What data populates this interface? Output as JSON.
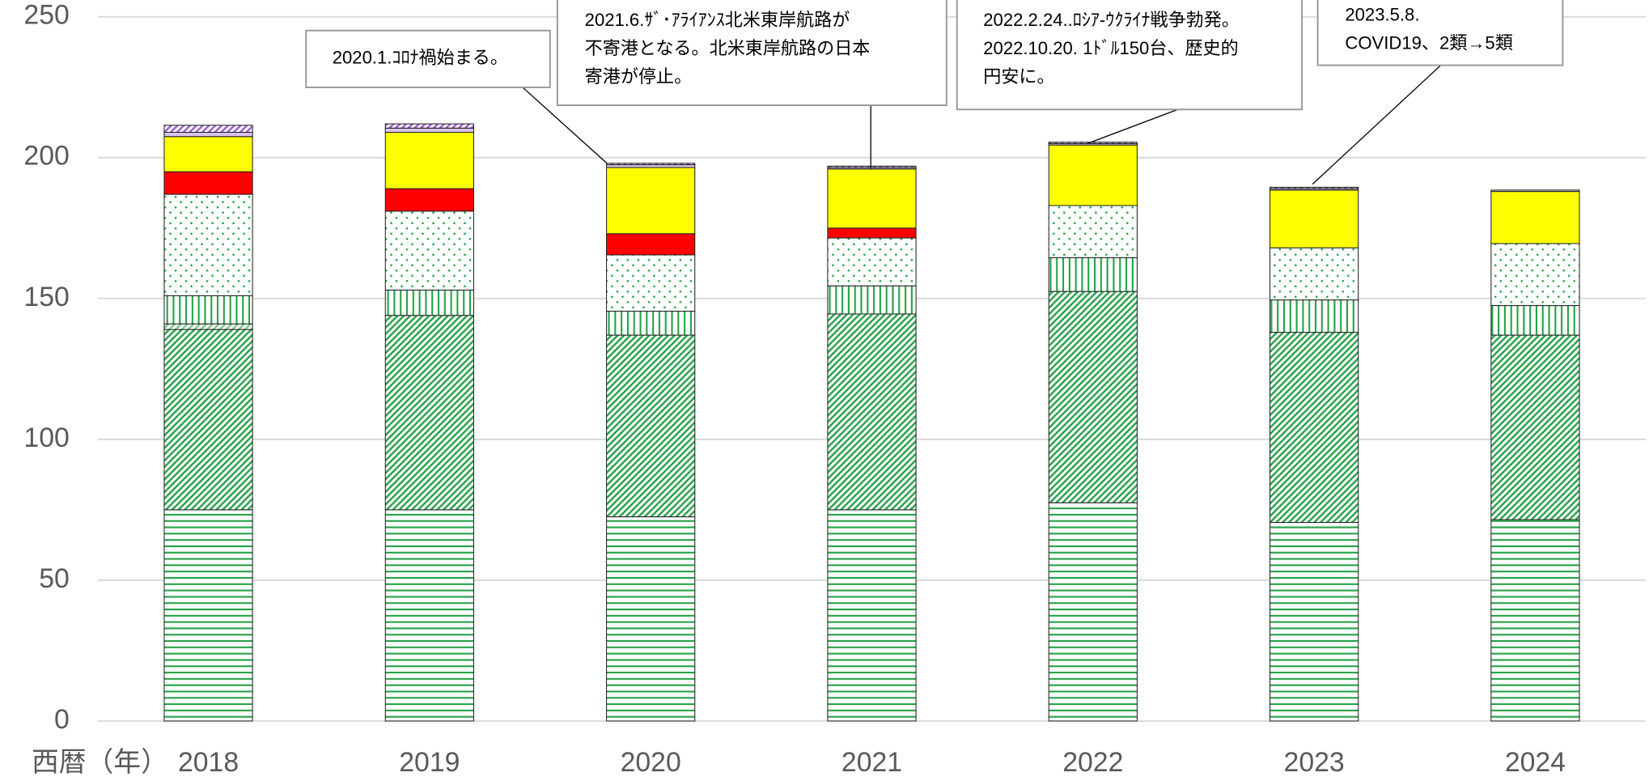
{
  "chart_data": {
    "type": "stacked_bar",
    "x_label": "西暦（年）",
    "categories": [
      "2018",
      "2019",
      "2020",
      "2021",
      "2022",
      "2023",
      "2024"
    ],
    "series": [
      {
        "color": "#22a045",
        "pattern": "hlines",
        "values": [
          75,
          75,
          72.5,
          75,
          77.5,
          70.5,
          71.5
        ]
      },
      {
        "color": "#22a045",
        "pattern": "diag",
        "values": [
          64,
          69,
          64.5,
          69.5,
          75,
          67.5,
          65.5
        ]
      },
      {
        "color": "#7cc48c",
        "pattern": "diag",
        "values": [
          2,
          0,
          0,
          0,
          0,
          0,
          0
        ]
      },
      {
        "color": "#22a045",
        "pattern": "vlines",
        "values": [
          10,
          9,
          8.5,
          10,
          12,
          11.5,
          10.5
        ]
      },
      {
        "color": "#22a045",
        "pattern": "dots",
        "values": [
          36,
          28,
          20,
          17,
          18.5,
          18.5,
          22
        ]
      },
      {
        "color": "#ff0000",
        "pattern": "solid",
        "values": [
          8,
          8,
          7.5,
          3.5,
          0,
          0,
          0
        ]
      },
      {
        "color": "#ffff00",
        "pattern": "solid",
        "values": [
          12.5,
          20,
          23.5,
          21,
          21.5,
          20.5,
          18.5
        ]
      },
      {
        "color": "#d9c3f0",
        "pattern": "solid",
        "values": [
          1.5,
          1.5,
          1,
          0.5,
          0.5,
          0.5,
          0.5
        ]
      },
      {
        "color": "#9b59d0",
        "pattern": "diag",
        "values": [
          2.5,
          1.5,
          0.5,
          0.5,
          0.5,
          0.5,
          0
        ]
      }
    ],
    "ylim": [
      0,
      250
    ],
    "yticks": [
      0,
      50,
      100,
      150,
      200,
      250
    ],
    "grid": true,
    "annotations": [
      {
        "lines": [
          "2020.1.ｺﾛﾅ禍始まる。"
        ]
      },
      {
        "lines": [
          "2021.6.ｻﾞ･ｱﾗｲｱﾝｽ北米東岸航路が",
          "不寄港となる。北米東岸航路の日本",
          "寄港が停止。"
        ]
      },
      {
        "lines": [
          "2022.2.24..ﾛｼｱ-ｳｸﾗｲﾅ戦争勃発。",
          "2022.10.20. 1ﾄﾞﾙ150台、歴史的",
          "円安に。"
        ]
      },
      {
        "lines": [
          "2023.5.8.",
          "COVID19、2類→5類"
        ]
      }
    ]
  }
}
